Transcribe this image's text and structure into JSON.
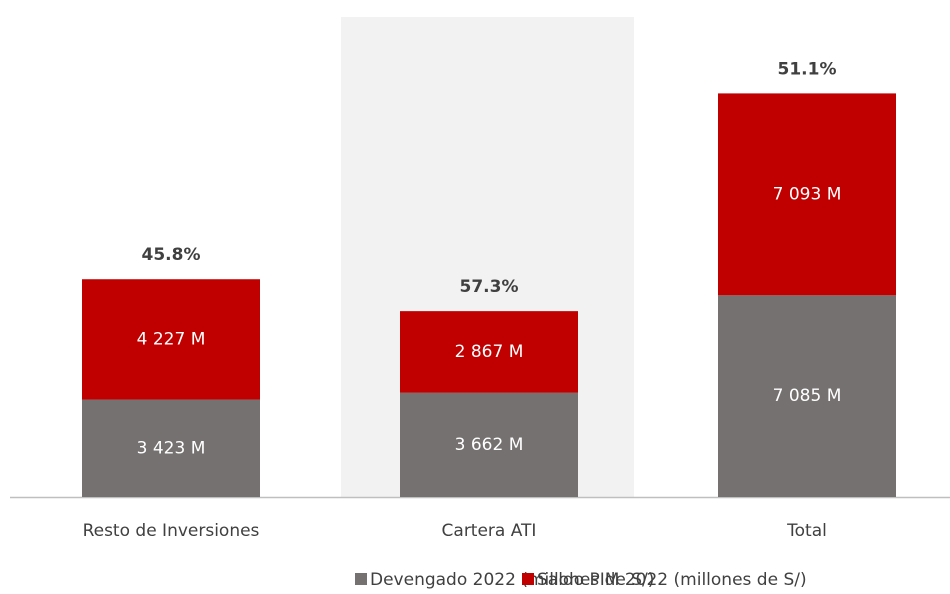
{
  "chart_data": {
    "type": "stacked-bar",
    "categories": [
      "Resto de Inversiones",
      "Cartera ATI",
      "Total"
    ],
    "series": [
      {
        "name": "Devengado 2022 (millones de S/)",
        "color": "#767171",
        "values": [
          3423,
          3662,
          7085
        ],
        "value_labels": [
          "3 423 M",
          "3 662 M",
          "7 085 M"
        ]
      },
      {
        "name": "Saldo PIM 2022 (millones de S/)",
        "color": "#c00000",
        "values": [
          4227,
          2867,
          7093
        ],
        "value_labels": [
          "4 227 M",
          "2 867 M",
          "7 093 M"
        ]
      }
    ],
    "annotations": [
      "45.8%",
      "57.3%",
      "51.1%"
    ],
    "ylim": [
      0,
      15000
    ],
    "legend": "bottom"
  }
}
